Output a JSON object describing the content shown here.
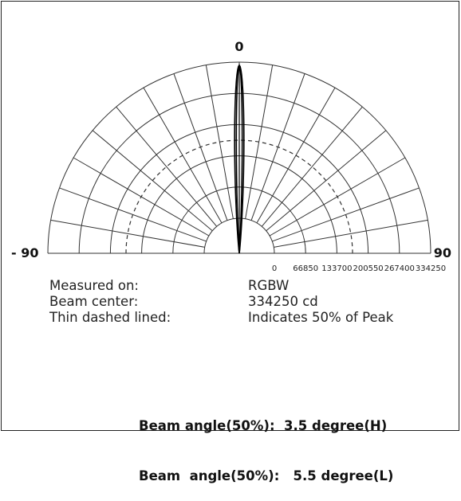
{
  "chart_data": {
    "type": "polar",
    "angle_labels": {
      "left": "- 90",
      "top": "0",
      "right": "90"
    },
    "radial_ticks": [
      "0",
      "66850",
      "133700",
      "200550",
      "267400",
      "334250"
    ],
    "rlim": [
      0,
      334250
    ],
    "angle_range_deg": [
      -90,
      90
    ],
    "spoke_step_deg": 10,
    "half_peak_ratio": 0.5,
    "series": [
      {
        "name": "H",
        "beam_angle_deg": 3.5,
        "peak": 334250
      },
      {
        "name": "L",
        "beam_angle_deg": 5.5,
        "peak": 334250
      }
    ],
    "grid": true
  },
  "info": [
    {
      "label": "Measured on:",
      "value": "RGBW"
    },
    {
      "label": "Beam center:",
      "value": "334250 cd"
    },
    {
      "label": "Thin dashed lined:",
      "value": "Indicates 50% of Peak"
    }
  ],
  "beam_angles": [
    "Beam angle(50%):  3.5 degree(H)",
    "Beam  angle(50%):   5.5 degree(L)"
  ],
  "colors": {
    "grid": "#333333",
    "curve": "#000000"
  }
}
